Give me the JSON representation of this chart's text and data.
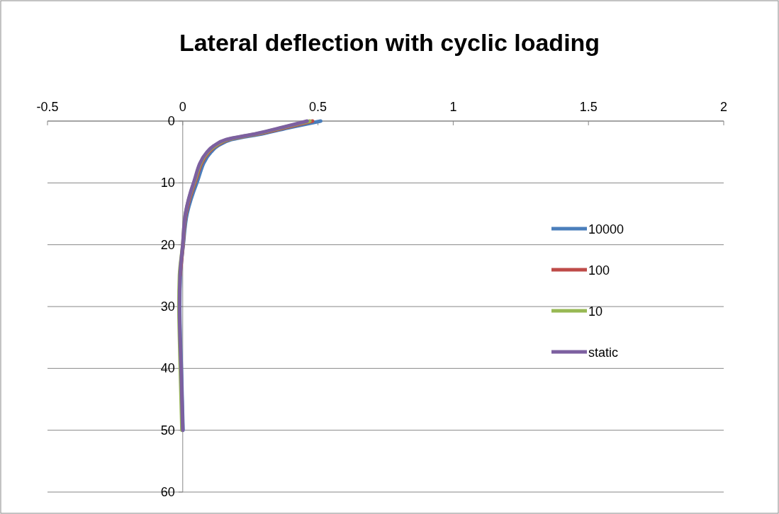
{
  "chart_data": {
    "type": "line",
    "title": "Lateral deflection with cyclic loading",
    "xlim": [
      -0.5,
      2
    ],
    "xticks": [
      -0.5,
      0,
      0.5,
      1,
      1.5,
      2
    ],
    "ylim": [
      60,
      0
    ],
    "yticks": [
      0,
      10,
      20,
      30,
      40,
      50,
      60
    ],
    "grid": "y",
    "legend": "right",
    "marker": "none",
    "line_style": "solid",
    "series": [
      {
        "name": "10000",
        "color": "#4a7ebb",
        "x": [
          0.51,
          0.4,
          0.3,
          0.18,
          0.13,
          0.105,
          0.052,
          0.016,
          0.002,
          -0.009,
          -0.011,
          -0.009,
          -0.005,
          -0.002,
          0.001
        ],
        "values": [
          0,
          1,
          2,
          3,
          4,
          5,
          10,
          15,
          20,
          25,
          30,
          35,
          40,
          45,
          50
        ]
      },
      {
        "name": "100",
        "color": "#be4b48",
        "x": [
          0.48,
          0.385,
          0.285,
          0.17,
          0.123,
          0.097,
          0.045,
          0.012,
          0.001,
          -0.01,
          null,
          null,
          null,
          null,
          null
        ],
        "values": [
          0,
          1,
          2,
          3,
          4,
          5,
          10,
          15,
          20,
          25,
          null,
          null,
          null,
          null,
          null
        ]
      },
      {
        "name": "10",
        "color": "#98b954",
        "x": [
          0.47,
          0.375,
          0.28,
          0.165,
          0.12,
          0.093,
          0.042,
          0.01,
          0,
          -0.012,
          -0.014,
          -0.012,
          -0.009,
          -0.006,
          -0.003
        ],
        "values": [
          0,
          1,
          2,
          3,
          4,
          5,
          10,
          15,
          20,
          25,
          30,
          35,
          40,
          45,
          50
        ]
      },
      {
        "name": "static",
        "color": "#7d60a0",
        "x": [
          0.46,
          0.37,
          0.275,
          0.16,
          0.115,
          0.09,
          0.04,
          0.01,
          0,
          -0.01,
          -0.012,
          -0.01,
          -0.006,
          -0.003,
          0
        ],
        "values": [
          0,
          1,
          2,
          3,
          4,
          5,
          10,
          15,
          20,
          25,
          30,
          35,
          40,
          45,
          50
        ]
      }
    ]
  }
}
